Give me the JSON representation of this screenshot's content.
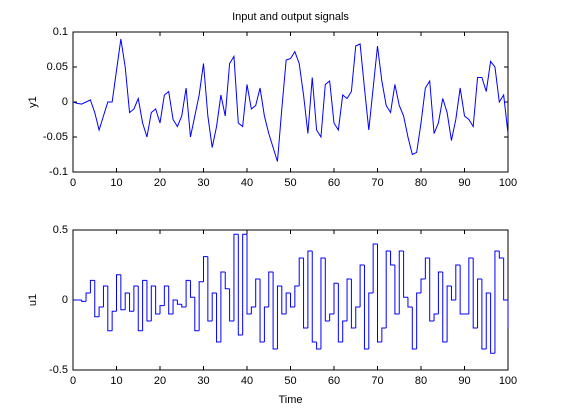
{
  "chart_data": [
    {
      "type": "line",
      "title": "Input and output signals",
      "ylabel": "y1",
      "x": [
        0,
        1,
        2,
        3,
        4,
        5,
        6,
        7,
        8,
        9,
        10,
        11,
        12,
        13,
        14,
        15,
        16,
        17,
        18,
        19,
        20,
        21,
        22,
        23,
        24,
        25,
        26,
        27,
        28,
        29,
        30,
        31,
        32,
        33,
        34,
        35,
        36,
        37,
        38,
        39,
        40,
        41,
        42,
        43,
        44,
        45,
        46,
        47,
        48,
        49,
        50,
        51,
        52,
        53,
        54,
        55,
        56,
        57,
        58,
        59,
        60,
        61,
        62,
        63,
        64,
        65,
        66,
        67,
        68,
        69,
        70,
        71,
        72,
        73,
        74,
        75,
        76,
        77,
        78,
        79,
        80,
        81,
        82,
        83,
        84,
        85,
        86,
        87,
        88,
        89,
        90,
        91,
        92,
        93,
        94,
        95,
        96,
        97,
        98,
        99,
        100
      ],
      "series": [
        {
          "name": "y1",
          "color": "#0000ff",
          "values": [
            0,
            -0.002,
            -0.003,
            0,
            0.003,
            -0.015,
            -0.04,
            -0.02,
            0,
            0,
            0.045,
            0.09,
            0.05,
            -0.015,
            -0.01,
            0.005,
            -0.03,
            -0.05,
            -0.015,
            -0.01,
            -0.03,
            0.01,
            0.015,
            -0.025,
            -0.035,
            -0.02,
            0.02,
            -0.05,
            -0.02,
            0.01,
            0.055,
            -0.02,
            -0.065,
            -0.035,
            0.01,
            -0.02,
            0.055,
            0.065,
            -0.03,
            -0.035,
            0.025,
            -0.01,
            -0.005,
            0.02,
            -0.02,
            -0.045,
            -0.065,
            -0.085,
            -0.01,
            0.06,
            0.062,
            0.072,
            0.055,
            0.01,
            -0.045,
            0.035,
            -0.04,
            -0.05,
            0.025,
            0.03,
            -0.03,
            -0.04,
            0.01,
            0.005,
            0.015,
            0.08,
            0.083,
            0.02,
            -0.04,
            0.02,
            0.08,
            0.03,
            -0.005,
            -0.015,
            0.025,
            -0.005,
            -0.02,
            -0.05,
            -0.075,
            -0.072,
            -0.03,
            0.02,
            0.03,
            -0.045,
            -0.03,
            0.005,
            -0.015,
            -0.055,
            -0.025,
            0.02,
            -0.02,
            -0.025,
            -0.035,
            0.035,
            0.035,
            0.015,
            0.058,
            0.05,
            0,
            0.01,
            -0.045
          ]
        }
      ],
      "xlim": [
        0,
        100
      ],
      "xticks": [
        0,
        10,
        20,
        30,
        40,
        50,
        60,
        70,
        80,
        90,
        100
      ],
      "ylim": [
        -0.1,
        0.1
      ],
      "yticks": [
        -0.1,
        -0.05,
        0,
        0.05,
        0.1
      ]
    },
    {
      "type": "stairs",
      "ylabel": "u1",
      "xlabel": "Time",
      "x": [
        0,
        1,
        2,
        3,
        4,
        5,
        6,
        7,
        8,
        9,
        10,
        11,
        12,
        13,
        14,
        15,
        16,
        17,
        18,
        19,
        20,
        21,
        22,
        23,
        24,
        25,
        26,
        27,
        28,
        29,
        30,
        31,
        32,
        33,
        34,
        35,
        36,
        37,
        38,
        39,
        40,
        41,
        42,
        43,
        44,
        45,
        46,
        47,
        48,
        49,
        50,
        51,
        52,
        53,
        54,
        55,
        56,
        57,
        58,
        59,
        60,
        61,
        62,
        63,
        64,
        65,
        66,
        67,
        68,
        69,
        70,
        71,
        72,
        73,
        74,
        75,
        76,
        77,
        78,
        79,
        80,
        81,
        82,
        83,
        84,
        85,
        86,
        87,
        88,
        89,
        90,
        91,
        92,
        93,
        94,
        95,
        96,
        97,
        98,
        99,
        100
      ],
      "series": [
        {
          "name": "u1",
          "color": "#0000ff",
          "values": [
            0,
            0,
            -0.01,
            0.05,
            0.14,
            -0.12,
            -0.05,
            0.1,
            -0.22,
            -0.08,
            0.18,
            -0.07,
            0.05,
            -0.08,
            0.1,
            -0.22,
            0.14,
            -0.15,
            0.1,
            -0.1,
            -0.04,
            0.1,
            -0.1,
            0,
            -0.03,
            -0.05,
            0.14,
            0.02,
            -0.22,
            0.13,
            0.31,
            -0.15,
            0.05,
            -0.3,
            0.2,
            0.08,
            -0.15,
            0.47,
            -0.25,
            0.47,
            -0.1,
            -0.05,
            0.15,
            -0.3,
            -0.05,
            0.2,
            -0.35,
            0.1,
            -0.1,
            0.05,
            -0.05,
            0.1,
            0.3,
            -0.2,
            0.35,
            -0.3,
            -0.35,
            0.3,
            -0.15,
            -0.1,
            0.12,
            -0.3,
            -0.15,
            0.15,
            -0.2,
            -0.05,
            0.25,
            -0.35,
            0.05,
            0.4,
            -0.3,
            -0.2,
            0.35,
            0.25,
            -0.1,
            0.35,
            0.02,
            -0.05,
            -0.35,
            0.05,
            0.15,
            0.3,
            -0.15,
            -0.1,
            0.2,
            -0.3,
            0.1,
            0,
            0.25,
            -0.1,
            -0.1,
            0.3,
            -0.2,
            0.15,
            -0.35,
            0.05,
            -0.38,
            0.35,
            0.3,
            0,
            -0.2
          ]
        }
      ],
      "xlim": [
        0,
        100
      ],
      "xticks": [
        0,
        10,
        20,
        30,
        40,
        50,
        60,
        70,
        80,
        90,
        100
      ],
      "ylim": [
        -0.5,
        0.5
      ],
      "yticks": [
        -0.5,
        0,
        0.5
      ]
    }
  ]
}
